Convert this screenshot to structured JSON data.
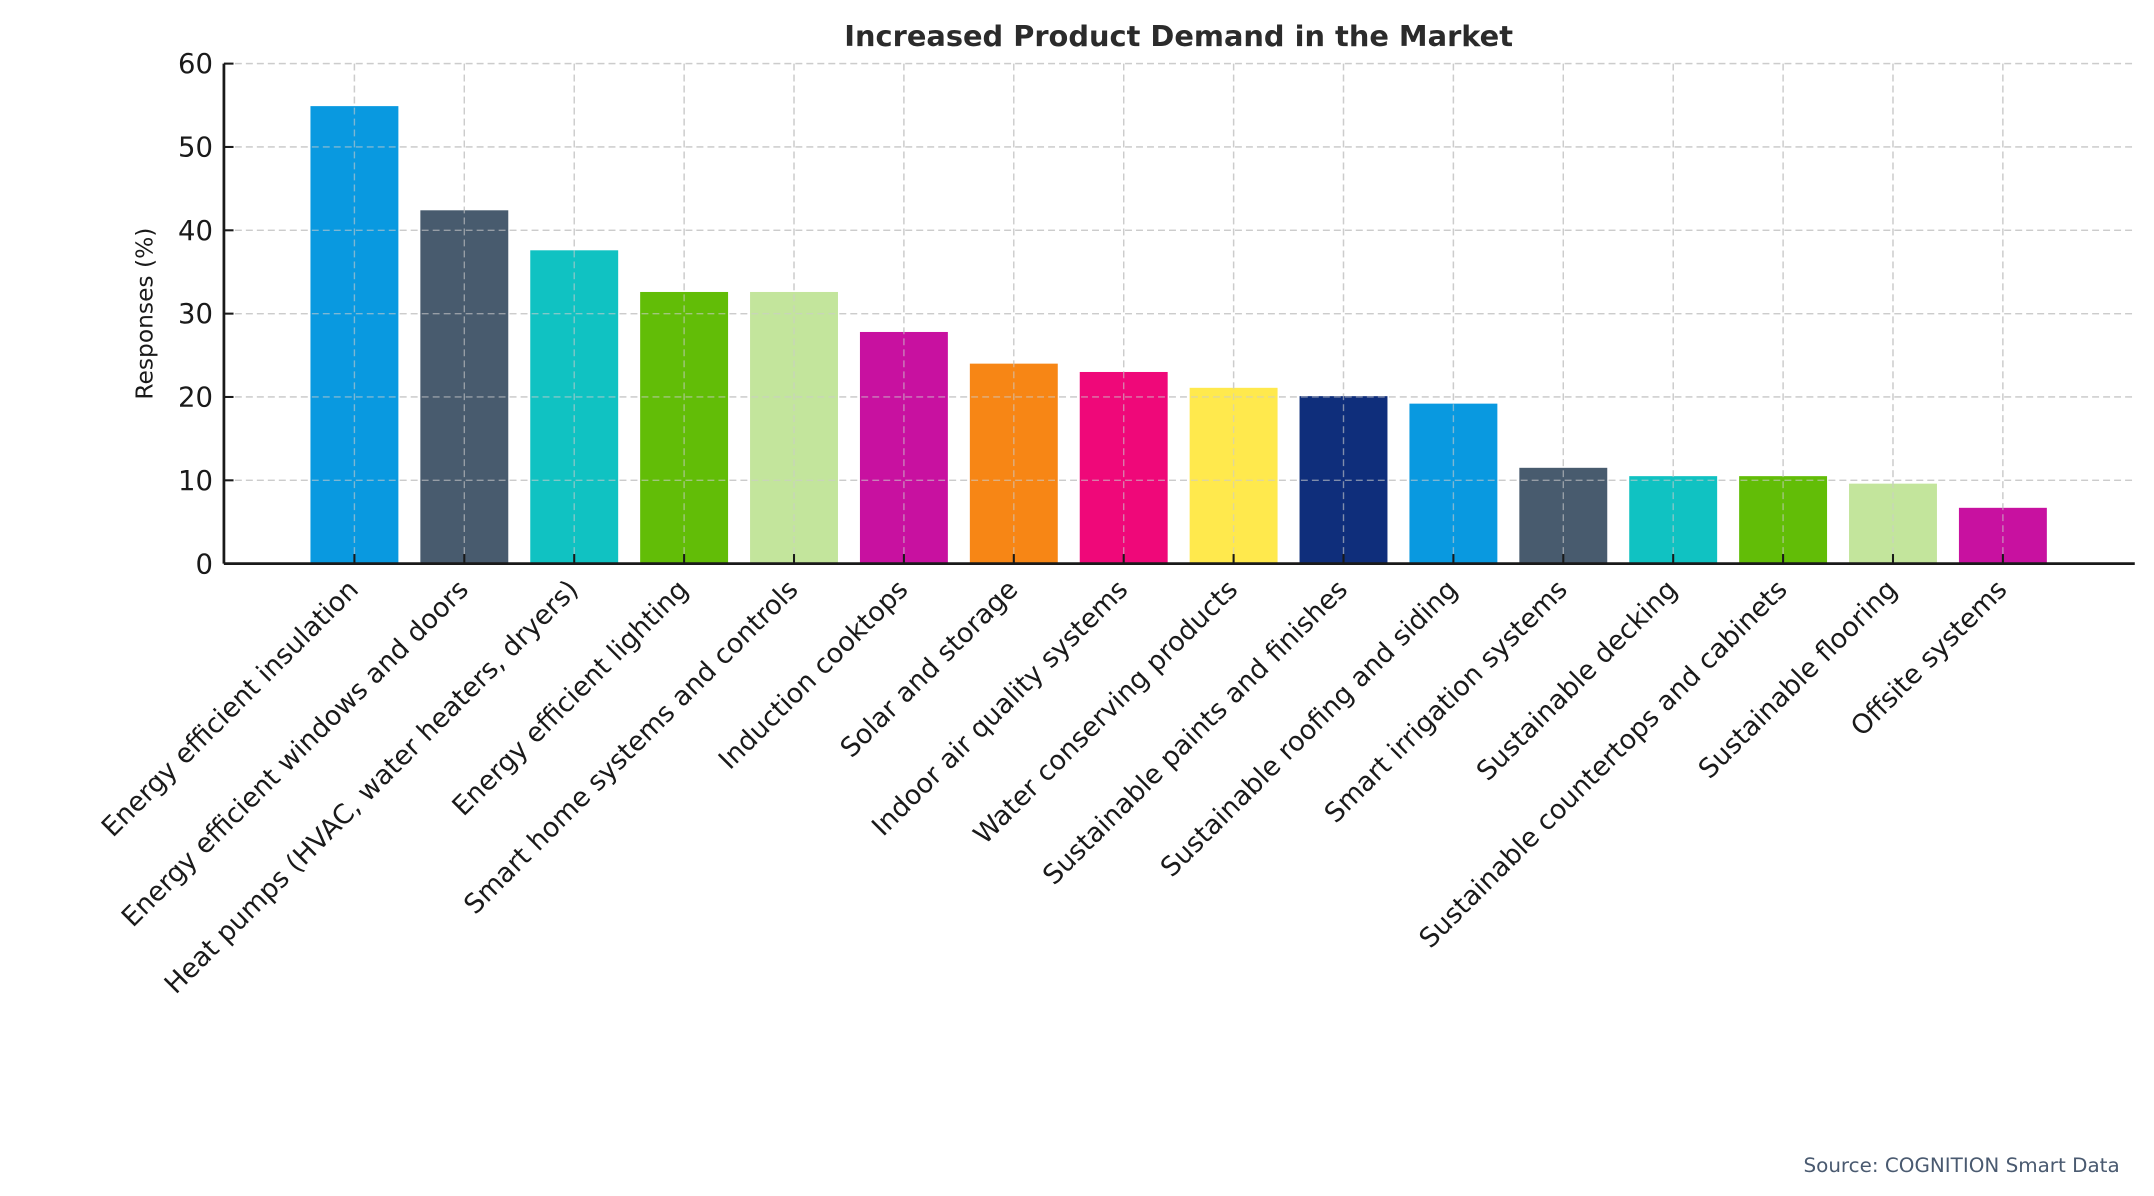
{
  "chart_data": {
    "type": "bar",
    "title": "Increased Product Demand in the Market",
    "xlabel": "",
    "ylabel": "Responses (%)",
    "ylim": [
      0,
      60
    ],
    "yticks": [
      0,
      10,
      20,
      30,
      40,
      50,
      60
    ],
    "grid": true,
    "categories": [
      "Energy efficient insulation",
      "Energy efficient windows and doors",
      "Heat pumps (HVAC, water heaters, dryers)",
      "Energy efficient lighting",
      "Smart home systems and controls",
      "Induction cooktops",
      "Solar and storage",
      "Indoor air quality systems",
      "Water conserving products",
      "Sustainable paints and finishes",
      "Sustainable roofing and siding",
      "Smart irrigation systems",
      "Sustainable decking",
      "Sustainable countertops and cabinets",
      "Sustainable flooring",
      "Offsite systems"
    ],
    "values": [
      54.9,
      42.4,
      37.6,
      32.6,
      32.6,
      27.8,
      24.0,
      23.0,
      21.1,
      20.1,
      19.2,
      11.5,
      10.5,
      10.5,
      9.6,
      6.7
    ],
    "colors": [
      "#0999e0",
      "#485b6e",
      "#10c2c2",
      "#62bd07",
      "#c3e59c",
      "#c811a0",
      "#f78615",
      "#ef0879",
      "#ffe94d",
      "#0f2e7b",
      "#0999e0",
      "#485b6e",
      "#10c2c2",
      "#62bd07",
      "#c3e59c",
      "#c811a0"
    ],
    "source": "Source: COGNITION Smart Data"
  }
}
